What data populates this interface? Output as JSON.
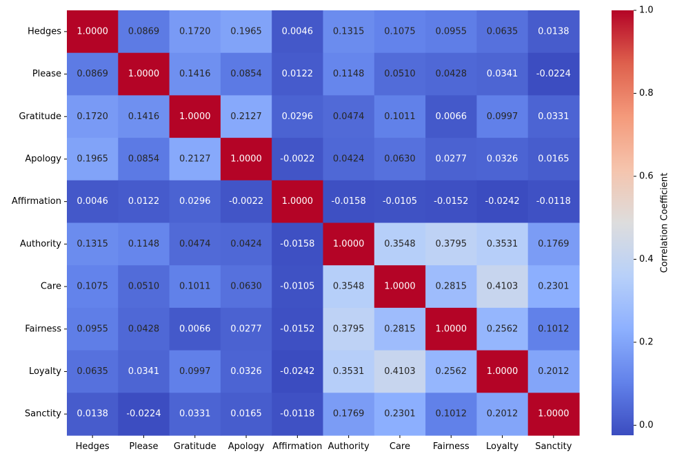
{
  "chart_data": {
    "type": "heatmap",
    "labels": [
      "Hedges",
      "Please",
      "Gratitude",
      "Apology",
      "Affirmation",
      "Authority",
      "Care",
      "Fairness",
      "Loyalty",
      "Sanctity"
    ],
    "matrix": [
      [
        1.0,
        0.0869,
        0.172,
        0.1965,
        0.0046,
        0.1315,
        0.1075,
        0.0955,
        0.0635,
        0.0138
      ],
      [
        0.0869,
        1.0,
        0.1416,
        0.0854,
        0.0122,
        0.1148,
        0.051,
        0.0428,
        0.0341,
        -0.0224
      ],
      [
        0.172,
        0.1416,
        1.0,
        0.2127,
        0.0296,
        0.0474,
        0.1011,
        0.0066,
        0.0997,
        0.0331
      ],
      [
        0.1965,
        0.0854,
        0.2127,
        1.0,
        -0.0022,
        0.0424,
        0.063,
        0.0277,
        0.0326,
        0.0165
      ],
      [
        0.0046,
        0.0122,
        0.0296,
        -0.0022,
        1.0,
        -0.0158,
        -0.0105,
        -0.0152,
        -0.0242,
        -0.0118
      ],
      [
        0.1315,
        0.1148,
        0.0474,
        0.0424,
        -0.0158,
        1.0,
        0.3548,
        0.3795,
        0.3531,
        0.1769
      ],
      [
        0.1075,
        0.051,
        0.1011,
        0.063,
        -0.0105,
        0.3548,
        1.0,
        0.2815,
        0.4103,
        0.2301
      ],
      [
        0.0955,
        0.0428,
        0.0066,
        0.0277,
        -0.0152,
        0.3795,
        0.2815,
        1.0,
        0.2562,
        0.1012
      ],
      [
        0.0635,
        0.0341,
        0.0997,
        0.0326,
        -0.0242,
        0.3531,
        0.4103,
        0.2562,
        1.0,
        0.2012
      ],
      [
        0.0138,
        -0.0224,
        0.0331,
        0.0165,
        -0.0118,
        0.1769,
        0.2301,
        0.1012,
        0.2012,
        1.0
      ]
    ],
    "value_format": "4 decimals",
    "colormap": "coolwarm",
    "vmin": -0.0242,
    "vmax": 1.0,
    "colorbar": {
      "label": "Correlation Coefficient",
      "ticks": [
        "0.0",
        "0.2",
        "0.4",
        "0.6",
        "0.8",
        "1.0"
      ],
      "tick_values": [
        0.0,
        0.2,
        0.4,
        0.6,
        0.8,
        1.0
      ]
    },
    "title": "",
    "xlabel": "",
    "ylabel": ""
  }
}
